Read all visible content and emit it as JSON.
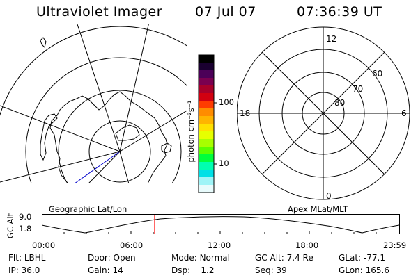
{
  "header": {
    "title": "Ultraviolet Imager",
    "date": "07 Jul 07",
    "time": "07:36:39 UT"
  },
  "geo_map": {
    "caption": "Geographic Lat/Lon",
    "coastline": "antarctica-coastline"
  },
  "colorbar": {
    "label": "photon cm⁻²s⁻¹",
    "ticks": [
      "100",
      "10"
    ],
    "colors": [
      "#000000",
      "#1a0030",
      "#4b0058",
      "#7a0050",
      "#a8002a",
      "#d20010",
      "#ff3b00",
      "#ff8c00",
      "#ffb400",
      "#ffe000",
      "#e6ff00",
      "#a8ff00",
      "#5cff00",
      "#00ff3c",
      "#00ffb0",
      "#00e0e6",
      "#9ff4f7",
      "#e8fbfc"
    ]
  },
  "apex_plot": {
    "caption": "Apex MLat/MLT",
    "mlt_labels": {
      "top": "12",
      "left": "18",
      "right": "6",
      "bottom": "0"
    },
    "lat_labels": [
      "60",
      "70",
      "80"
    ]
  },
  "altitude_panel": {
    "ylabel": "GC Alt",
    "yticks": [
      "9.0",
      "1.8"
    ],
    "xticks": [
      "00:00",
      "06:00",
      "12:00",
      "18:00",
      "23:59"
    ],
    "current_marker_time": "07:36:39",
    "marker_color": "#ff0000"
  },
  "info": {
    "row1": [
      {
        "label": "Flt:",
        "value": "LBHL"
      },
      {
        "label": "Door:",
        "value": "Open"
      },
      {
        "label": "Mode:",
        "value": "Normal"
      },
      {
        "label": "GC Alt:",
        "value": "7.4 Re"
      },
      {
        "label": "GLat:",
        "value": "-77.1"
      }
    ],
    "row2": [
      {
        "label": "IP:",
        "value": "36.0"
      },
      {
        "label": "Gain:",
        "value": "14"
      },
      {
        "label": "Dsp:",
        "value": "1.2"
      },
      {
        "label": "Seq:",
        "value": "39"
      },
      {
        "label": "GLon:",
        "value": "165.6"
      }
    ]
  }
}
